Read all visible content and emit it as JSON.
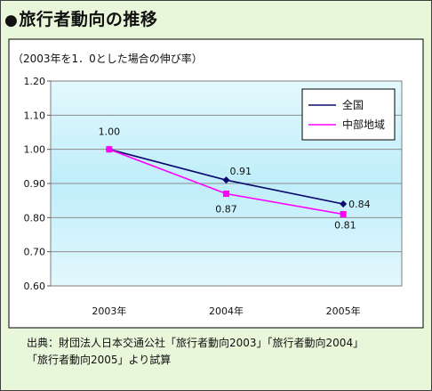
{
  "title": "旅行者動向の推移",
  "title_bullet": "●",
  "note": "（2003年を1．0とした場合の伸び率）",
  "source": {
    "line1": "出典：財団法人日本交通公社「旅行者動向2003」「旅行者動向2004」",
    "line2": "「旅行者動向2005」より試算"
  },
  "colors": {
    "frame_bg": "#e8f6d9",
    "plot_bg_top": "#e3f8fd",
    "plot_bg_mid": "#bfeefa",
    "national": "#0a0a6e",
    "chubu": "#ff00ff"
  },
  "chart_data": {
    "type": "line",
    "categories": [
      "2003年",
      "2004年",
      "2005年"
    ],
    "series": [
      {
        "name": "全国",
        "values": [
          1.0,
          0.91,
          0.84
        ],
        "labels": [
          "1.00",
          "0.91",
          "0.84"
        ],
        "marker": "diamond"
      },
      {
        "name": "中部地域",
        "values": [
          1.0,
          0.87,
          0.81
        ],
        "labels": [
          "",
          "0.87",
          "0.81"
        ],
        "marker": "square"
      }
    ],
    "ylim": [
      0.6,
      1.2
    ],
    "yticks": [
      "0.60",
      "0.70",
      "0.80",
      "0.90",
      "1.00",
      "1.10",
      "1.20"
    ],
    "grid": true,
    "legend": "top-right"
  }
}
